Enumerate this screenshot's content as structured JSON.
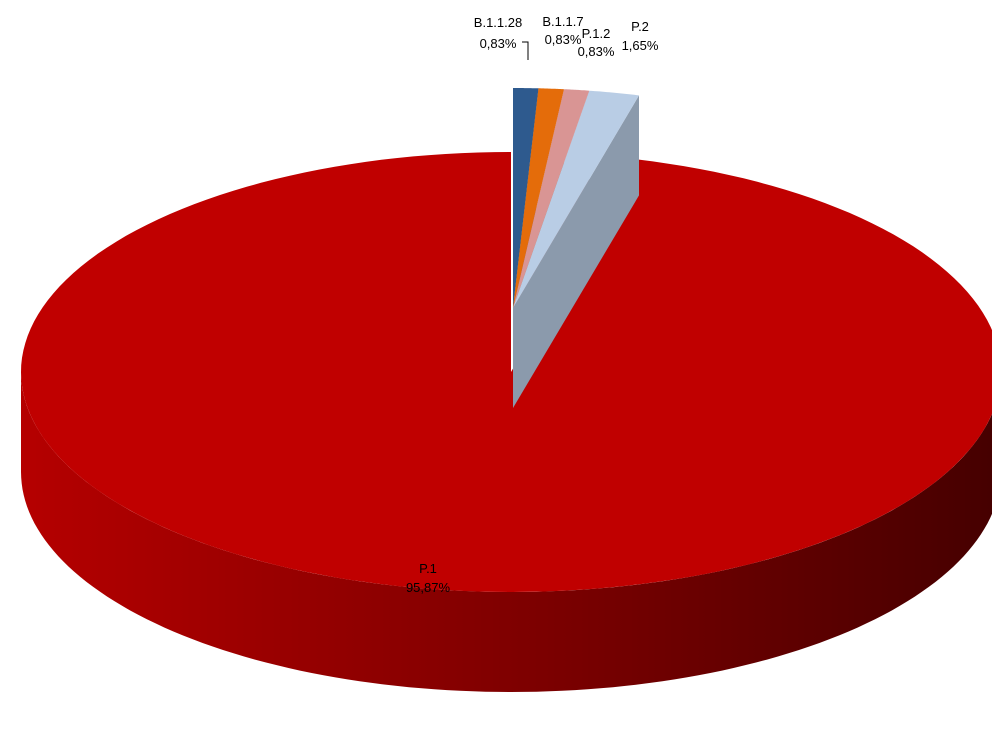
{
  "chart_data": {
    "type": "pie",
    "title": "",
    "legend": "none",
    "slices": [
      {
        "label": "B.1.1.28",
        "percent_text": "0,83%",
        "value": 0.83,
        "color": "#2e5a8e"
      },
      {
        "label": "B.1.1.7",
        "percent_text": "0,83%",
        "value": 0.83,
        "color": "#e46c0a"
      },
      {
        "label": "P.1.2",
        "percent_text": "0,83%",
        "value": 0.83,
        "color": "#d99594"
      },
      {
        "label": "P.2",
        "percent_text": "1,65%",
        "value": 1.65,
        "color": "#b9cde5"
      },
      {
        "label": "P.1",
        "percent_text": "95,87%",
        "value": 95.87,
        "color": "#c00000"
      }
    ]
  }
}
